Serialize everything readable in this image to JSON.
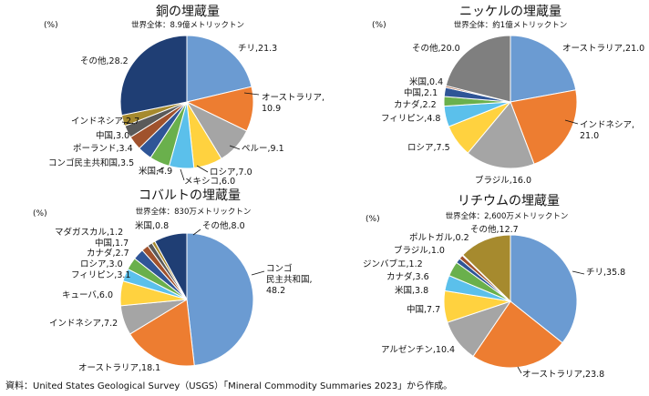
{
  "source": "資料：United States Geological Survey（USGS）「Mineral Commodity Summaries 2023」から作成。",
  "chart_data": [
    {
      "type": "pie",
      "title": "銅の埋蔵量",
      "subtitle": "世界全体：8.9億メトリックトン",
      "unit": "(%)",
      "slices": [
        {
          "label": "チリ,21.3",
          "value": 21.3,
          "color": "#6b9bd2"
        },
        {
          "label": "オーストラリア,10.9",
          "value": 10.9,
          "color": "#ed7d31"
        },
        {
          "label": "ペルー,9.1",
          "value": 9.1,
          "color": "#a5a5a5"
        },
        {
          "label": "ロシア,7.0",
          "value": 7.0,
          "color": "#ffd23f"
        },
        {
          "label": "メキシコ,6.0",
          "value": 6.0,
          "color": "#5bc0eb"
        },
        {
          "label": "米国,4.9",
          "value": 4.9,
          "color": "#6ab04c"
        },
        {
          "label": "コンゴ民主共和国,3.5",
          "value": 3.5,
          "color": "#2f5597"
        },
        {
          "label": "ポーランド,3.4",
          "value": 3.4,
          "color": "#a0522d"
        },
        {
          "label": "中国,3.0",
          "value": 3.0,
          "color": "#5a5a5a"
        },
        {
          "label": "インドネシア,2.7",
          "value": 2.7,
          "color": "#a68a2e"
        },
        {
          "label": "その他,28.2",
          "value": 28.2,
          "color": "#1f3e74"
        }
      ]
    },
    {
      "type": "pie",
      "title": "ニッケルの埋蔵量",
      "subtitle": "世界全体：約1億メトリックトン",
      "unit": "(%)",
      "slices": [
        {
          "label": "オーストラリア,21.0",
          "value": 21.0,
          "color": "#6b9bd2"
        },
        {
          "label": "インドネシア,21.0",
          "value": 21.0,
          "color": "#ed7d31"
        },
        {
          "label": "ブラジル,16.0",
          "value": 16.0,
          "color": "#a5a5a5"
        },
        {
          "label": "ロシア,7.5",
          "value": 7.5,
          "color": "#ffd23f"
        },
        {
          "label": "フィリピン,4.8",
          "value": 4.8,
          "color": "#5bc0eb"
        },
        {
          "label": "カナダ,2.2",
          "value": 2.2,
          "color": "#6ab04c"
        },
        {
          "label": "中国,2.1",
          "value": 2.1,
          "color": "#2f5597"
        },
        {
          "label": "米国,0.4",
          "value": 0.4,
          "color": "#a0522d"
        },
        {
          "label": "その他,20.0",
          "value": 20.0,
          "color": "#7f7f7f"
        }
      ]
    },
    {
      "type": "pie",
      "title": "コバルトの埋蔵量",
      "subtitle": "世界全体：830万メトリックトン",
      "unit": "(%)",
      "slices": [
        {
          "label": "コンゴ民主共和国,48.2",
          "value": 48.2,
          "color": "#6b9bd2"
        },
        {
          "label": "オーストラリア,18.1",
          "value": 18.1,
          "color": "#ed7d31"
        },
        {
          "label": "インドネシア,7.2",
          "value": 7.2,
          "color": "#a5a5a5"
        },
        {
          "label": "キューバ,6.0",
          "value": 6.0,
          "color": "#ffd23f"
        },
        {
          "label": "フィリピン,3.1",
          "value": 3.1,
          "color": "#5bc0eb"
        },
        {
          "label": "ロシア,3.0",
          "value": 3.0,
          "color": "#6ab04c"
        },
        {
          "label": "カナダ,2.7",
          "value": 2.7,
          "color": "#2f5597"
        },
        {
          "label": "中国,1.7",
          "value": 1.7,
          "color": "#a0522d"
        },
        {
          "label": "マダガスカル,1.2",
          "value": 1.2,
          "color": "#5a5a5a"
        },
        {
          "label": "米国,0.8",
          "value": 0.8,
          "color": "#a68a2e"
        },
        {
          "label": "その他,8.0",
          "value": 8.0,
          "color": "#1f3e74"
        }
      ]
    },
    {
      "type": "pie",
      "title": "リチウムの埋蔵量",
      "subtitle": "世界全体：2,600万メトリックトン",
      "unit": "(%)",
      "slices": [
        {
          "label": "チリ,35.8",
          "value": 35.8,
          "color": "#6b9bd2"
        },
        {
          "label": "オーストラリア,23.8",
          "value": 23.8,
          "color": "#ed7d31"
        },
        {
          "label": "アルゼンチン,10.4",
          "value": 10.4,
          "color": "#a5a5a5"
        },
        {
          "label": "中国,7.7",
          "value": 7.7,
          "color": "#ffd23f"
        },
        {
          "label": "米国,3.8",
          "value": 3.8,
          "color": "#5bc0eb"
        },
        {
          "label": "カナダ,3.6",
          "value": 3.6,
          "color": "#6ab04c"
        },
        {
          "label": "ジンバブエ,1.2",
          "value": 1.2,
          "color": "#2f5597"
        },
        {
          "label": "ブラジル,1.0",
          "value": 1.0,
          "color": "#a0522d"
        },
        {
          "label": "ポルトガル,0.2",
          "value": 0.2,
          "color": "#5a5a5a"
        },
        {
          "label": "その他,12.7",
          "value": 12.7,
          "color": "#a68a2e"
        }
      ]
    }
  ]
}
